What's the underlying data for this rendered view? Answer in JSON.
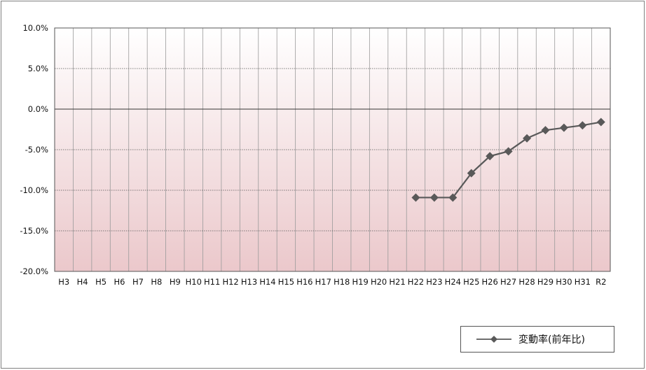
{
  "chart_data": {
    "type": "line",
    "title": "",
    "xlabel": "",
    "ylabel": "",
    "categories": [
      "H3",
      "H4",
      "H5",
      "H6",
      "H7",
      "H8",
      "H9",
      "H10",
      "H11",
      "H12",
      "H13",
      "H14",
      "H15",
      "H16",
      "H17",
      "H18",
      "H19",
      "H20",
      "H21",
      "H22",
      "H23",
      "H24",
      "H25",
      "H26",
      "H27",
      "H28",
      "H29",
      "H30",
      "H31",
      "R2"
    ],
    "ylim": [
      -20.0,
      10.0
    ],
    "yticks": [
      10.0,
      5.0,
      0.0,
      -5.0,
      -10.0,
      -15.0,
      -20.0
    ],
    "ytick_labels": [
      "10.0%",
      "5.0%",
      "0.0%",
      "-5.0%",
      "-10.0%",
      "-15.0%",
      "-20.0%"
    ],
    "grid": true,
    "legend_position": "bottom-right",
    "series": [
      {
        "name": "変動率(前年比)",
        "color": "#595959",
        "marker": "diamond",
        "values": [
          null,
          null,
          null,
          null,
          null,
          null,
          null,
          null,
          null,
          null,
          null,
          null,
          null,
          null,
          null,
          null,
          null,
          null,
          null,
          -10.9,
          -10.9,
          -10.9,
          -7.9,
          -5.8,
          -5.2,
          -3.6,
          -2.6,
          -2.3,
          -2.0,
          -1.6
        ]
      }
    ]
  }
}
